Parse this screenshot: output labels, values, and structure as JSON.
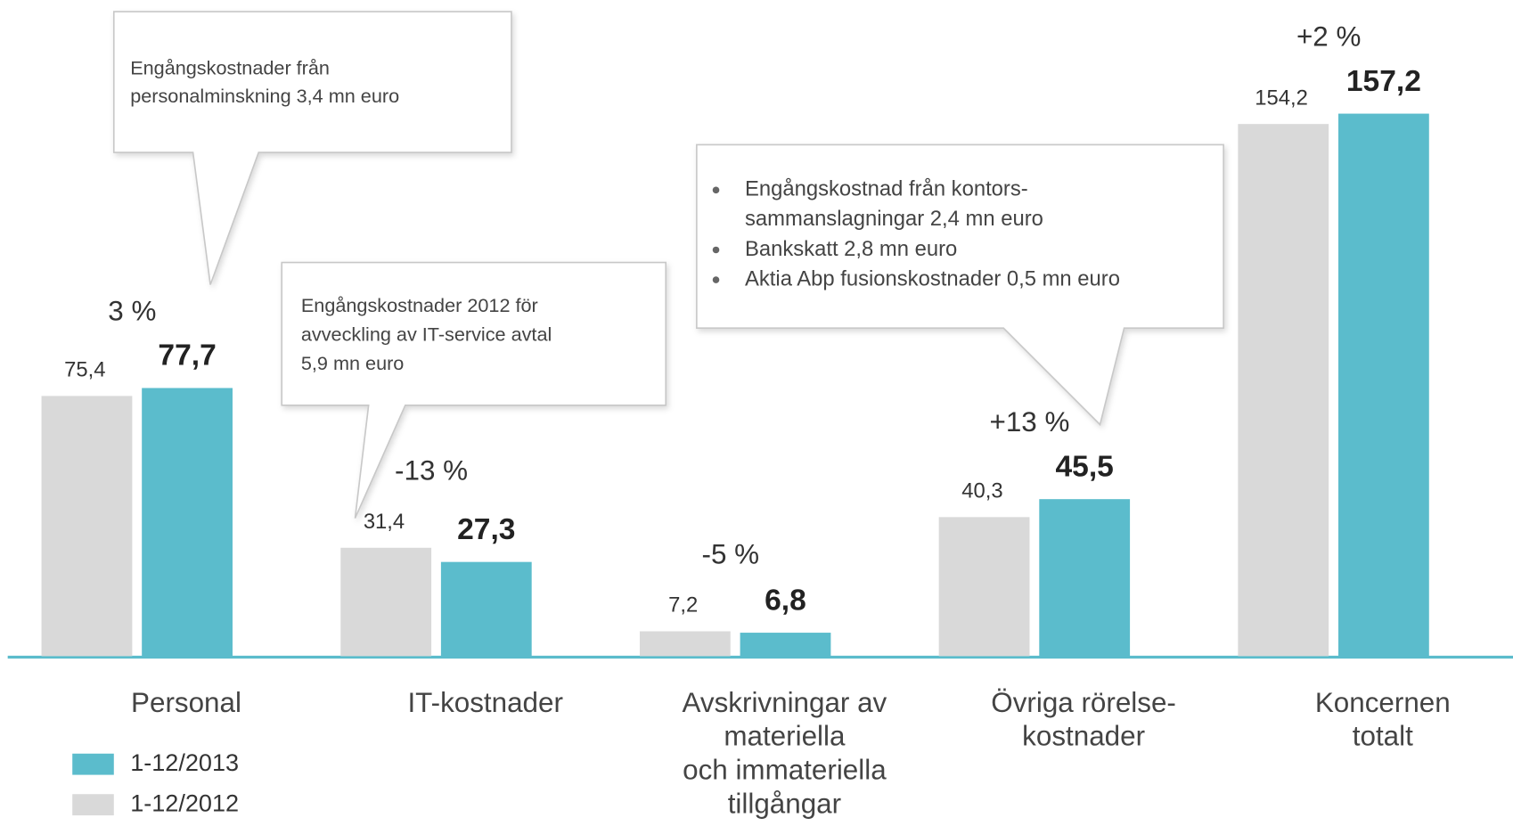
{
  "chart_data": {
    "type": "bar",
    "categories": [
      [
        "Personal"
      ],
      [
        "IT-kostnader"
      ],
      [
        "Avskrivningar av",
        "materiella",
        "och immateriella",
        "tillgångar"
      ],
      [
        "Övriga rörelse-",
        "kostnader"
      ],
      [
        "Koncernen",
        "totalt"
      ]
    ],
    "series": [
      {
        "name": "1-12/2012",
        "color": "#d9d9d9",
        "values": [
          75.4,
          31.4,
          7.2,
          40.3,
          154.2
        ],
        "value_labels": [
          "75,4",
          "31,4",
          "7,2",
          "40,3",
          "154,2"
        ]
      },
      {
        "name": "1-12/2013",
        "color": "#5bbccc",
        "values": [
          77.7,
          27.3,
          6.8,
          45.5,
          157.2
        ],
        "value_labels": [
          "77,7",
          "27,3",
          "6,8",
          "45,5",
          "157,2"
        ]
      }
    ],
    "annotations": [
      "3 %",
      "-13 %",
      "-5 %",
      "+13 %",
      "+2 %"
    ],
    "ylim": [
      0,
      170
    ],
    "callouts": [
      {
        "lines": [
          "Engångskostnader från",
          "personalminskning 3,4 mn euro"
        ]
      },
      {
        "lines": [
          "Engångskostnader 2012 för",
          "avveckling av IT-service avtal",
          "5,9 mn euro"
        ]
      },
      {
        "items": [
          [
            "Engångskostnad från kontors-",
            "sammanslagningar 2,4 mn euro"
          ],
          [
            "Bankskatt 2,8 mn euro"
          ],
          [
            "Aktia Abp fusionskostnader 0,5 mn euro"
          ]
        ]
      }
    ]
  }
}
